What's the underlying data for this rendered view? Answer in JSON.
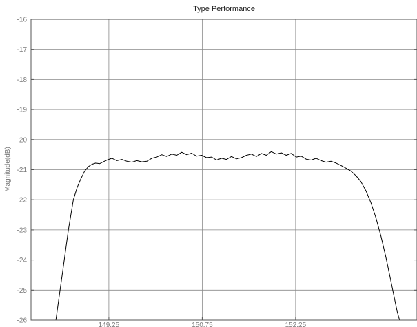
{
  "chart_data": {
    "type": "line",
    "title": "Type Performance",
    "xlabel": "",
    "ylabel": "Magnitude(dB)",
    "xlim": [
      148.0,
      154.2
    ],
    "ylim": [
      -26,
      -16
    ],
    "xticks": [
      149.25,
      150.75,
      152.25
    ],
    "xtick_labels": [
      "149.25",
      "150.75",
      "152.25"
    ],
    "yticks": [
      -16,
      -17,
      -18,
      -19,
      -20,
      -21,
      -22,
      -23,
      -24,
      -25,
      -26
    ],
    "ytick_labels": [
      "-16",
      "-17",
      "-18",
      "-19",
      "-20",
      "-21",
      "-22",
      "-23",
      "-24",
      "-25",
      "-26"
    ],
    "grid": true,
    "series": [
      {
        "x": [
          148.4,
          148.46,
          148.52,
          148.56,
          148.6,
          148.64,
          148.68,
          148.74,
          148.8,
          148.86,
          148.92,
          148.98,
          149.04,
          149.1,
          149.16,
          149.22,
          149.3,
          149.38,
          149.46,
          149.54,
          149.62,
          149.7,
          149.78,
          149.86,
          149.94,
          150.02,
          150.1,
          150.18,
          150.26,
          150.34,
          150.42,
          150.5,
          150.58,
          150.66,
          150.74,
          150.82,
          150.9,
          150.98,
          151.06,
          151.14,
          151.22,
          151.3,
          151.38,
          151.46,
          151.54,
          151.62,
          151.7,
          151.78,
          151.86,
          151.94,
          152.02,
          152.1,
          152.18,
          152.26,
          152.34,
          152.42,
          152.5,
          152.58,
          152.66,
          152.74,
          152.82,
          152.9,
          152.98,
          153.06,
          153.14,
          153.22,
          153.3,
          153.38,
          153.46,
          153.54,
          153.62,
          153.7,
          153.76,
          153.82,
          153.88,
          153.92
        ],
        "y": [
          -26.0,
          -25.1,
          -24.2,
          -23.6,
          -23.0,
          -22.5,
          -22.0,
          -21.6,
          -21.3,
          -21.05,
          -20.9,
          -20.82,
          -20.78,
          -20.8,
          -20.74,
          -20.68,
          -20.62,
          -20.7,
          -20.66,
          -20.72,
          -20.75,
          -20.7,
          -20.74,
          -20.72,
          -20.62,
          -20.58,
          -20.5,
          -20.56,
          -20.48,
          -20.52,
          -20.42,
          -20.5,
          -20.45,
          -20.55,
          -20.52,
          -20.6,
          -20.58,
          -20.68,
          -20.62,
          -20.66,
          -20.56,
          -20.64,
          -20.6,
          -20.52,
          -20.48,
          -20.56,
          -20.46,
          -20.52,
          -20.4,
          -20.48,
          -20.44,
          -20.52,
          -20.46,
          -20.58,
          -20.55,
          -20.65,
          -20.68,
          -20.62,
          -20.7,
          -20.75,
          -20.72,
          -20.78,
          -20.86,
          -20.95,
          -21.05,
          -21.2,
          -21.4,
          -21.7,
          -22.1,
          -22.6,
          -23.2,
          -23.9,
          -24.5,
          -25.1,
          -25.7,
          -26.0
        ]
      }
    ]
  }
}
